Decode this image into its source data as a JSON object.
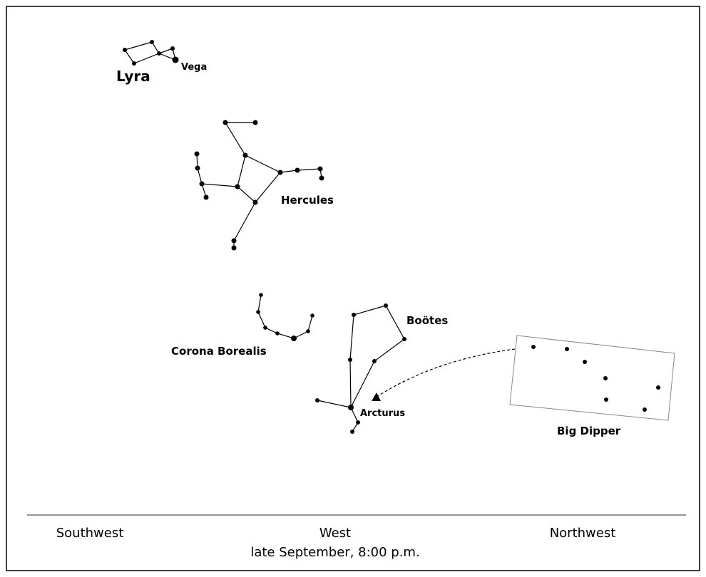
{
  "stars": {
    "lyra": "Lyra",
    "vega": "Vega",
    "hercules": "Hercules",
    "corona_borealis": "Corona Borealis",
    "bootes": "Boötes",
    "arcturus": "Arcturus",
    "big_dipper": "Big Dipper"
  },
  "horizon": {
    "directions": [
      "Southwest",
      "West",
      "Northwest"
    ],
    "caption": "late September, 8:00 p.m."
  }
}
